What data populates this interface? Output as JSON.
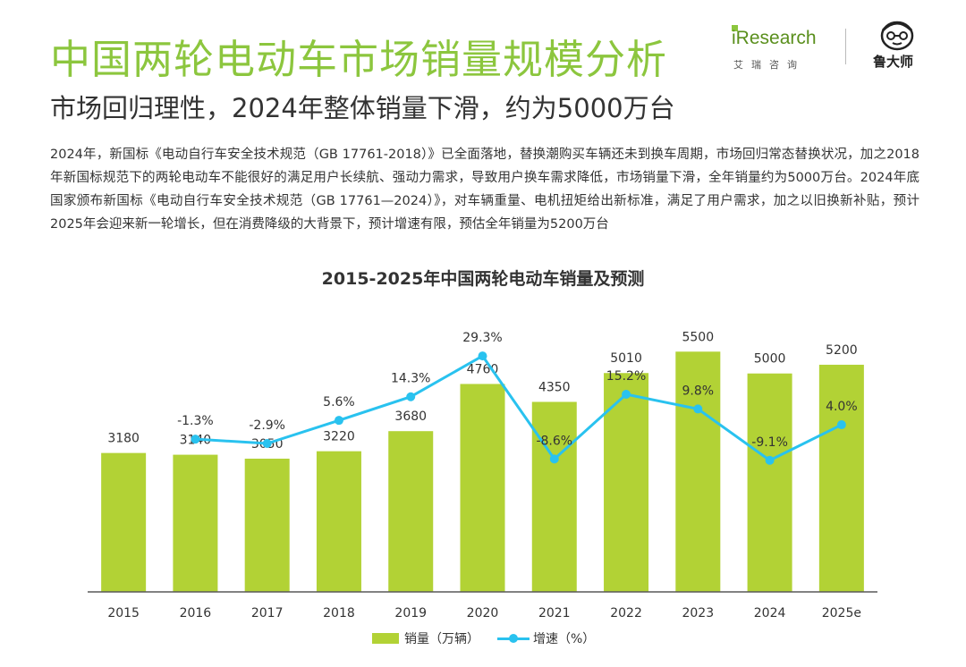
{
  "header": {
    "title": "中国两轮电动车市场销量规模分析",
    "subtitle": "市场回归理性，2024年整体销量下滑，约为5000万台"
  },
  "logos": {
    "iresearch_text": "iResearch",
    "iresearch_cn": "艾瑞咨询",
    "luds_text": "鲁大师"
  },
  "body_text": "2024年，新国标《电动自行车安全技术规范（GB 17761-2018）》已全面落地，替换潮购买车辆还未到换车周期，市场回归常态替换状况，加之2018年新国标规范下的两轮电动车不能很好的满足用户长续航、强动力需求，导致用户换车需求降低，市场销量下滑，全年销量约为5000万台。2024年底国家颁布新国标《电动自行车安全技术规范（GB 17761—2024）》，对车辆重量、电机扭矩给出新标准，满足了用户需求，加之以旧换新补贴，预计2025年会迎来新一轮增长，但在消费降级的大背景下，预计增速有限，预估全年销量为5200万台",
  "colors": {
    "title_green": "#8cc63e",
    "bar": "#b2d235",
    "line": "#29c2ef",
    "axis": "#595959"
  },
  "chart_data": {
    "type": "bar",
    "title": "2015-2025年中国两轮电动车销量及预测",
    "categories": [
      "2015",
      "2016",
      "2017",
      "2018",
      "2019",
      "2020",
      "2021",
      "2022",
      "2023",
      "2024",
      "2025e"
    ],
    "series": [
      {
        "name": "销量（万辆）",
        "type": "bar",
        "values": [
          3180,
          3140,
          3050,
          3220,
          3680,
          4760,
          4350,
          5010,
          5500,
          5000,
          5200
        ],
        "labels": [
          "3180",
          "3140",
          "3050",
          "3220",
          "3680",
          "4760",
          "4350",
          "5010",
          "5500",
          "5000",
          "5200"
        ]
      },
      {
        "name": "增速（%）",
        "type": "line",
        "values": [
          null,
          -1.3,
          -2.9,
          5.6,
          14.3,
          29.3,
          -8.6,
          15.2,
          9.8,
          -9.1,
          4.0
        ],
        "labels": [
          "",
          "-1.3%",
          "-2.9%",
          "5.6%",
          "14.3%",
          "29.3%",
          "-8.6%",
          "15.2%",
          "9.8%",
          "-9.1%",
          "4.0%"
        ]
      }
    ],
    "bar_ylim": [
      0,
      7000
    ],
    "line_ylim": [
      -70,
      55
    ],
    "legend_position": "bottom",
    "grid": false
  }
}
